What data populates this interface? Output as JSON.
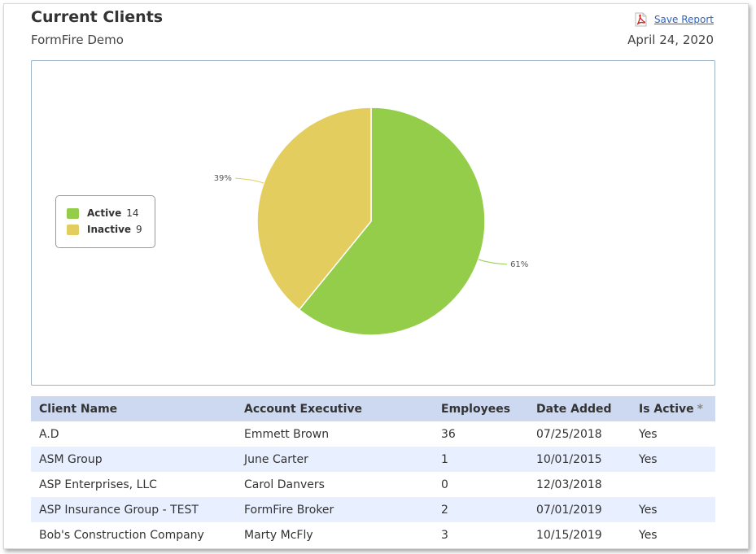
{
  "header": {
    "title": "Current Clients",
    "subtitle": "FormFire Demo",
    "date": "April 24, 2020",
    "save_report_label": "Save Report"
  },
  "chart_data": {
    "type": "pie",
    "slices": [
      {
        "name": "Active",
        "value": 14,
        "percent_label": "61%",
        "color": "#93cd4a"
      },
      {
        "name": "Inactive",
        "value": 9,
        "percent_label": "39%",
        "color": "#e3cd5f"
      }
    ],
    "legend_position": "left"
  },
  "table": {
    "columns": [
      "Client Name",
      "Account Executive",
      "Employees",
      "Date Added",
      "Is Active"
    ],
    "sort_marker": "*",
    "rows": [
      [
        "A.D",
        "Emmett Brown",
        "36",
        "07/25/2018",
        "Yes"
      ],
      [
        "ASM Group",
        "June Carter",
        "1",
        "10/01/2015",
        "Yes"
      ],
      [
        "ASP Enterprises, LLC",
        "Carol Danvers",
        "0",
        "12/03/2018",
        ""
      ],
      [
        "ASP Insurance Group - TEST",
        "FormFire Broker",
        "2",
        "07/01/2019",
        "Yes"
      ],
      [
        "Bob's Construction Company",
        "Marty McFly",
        "3",
        "10/15/2019",
        "Yes"
      ]
    ]
  },
  "colors": {
    "accent_link": "#2a64c5",
    "table_header": "#ccd9f0",
    "row_alt": "#e8efff",
    "chart_border": "#9bb4c8"
  },
  "icons": {
    "save_report": "pdf-icon"
  }
}
